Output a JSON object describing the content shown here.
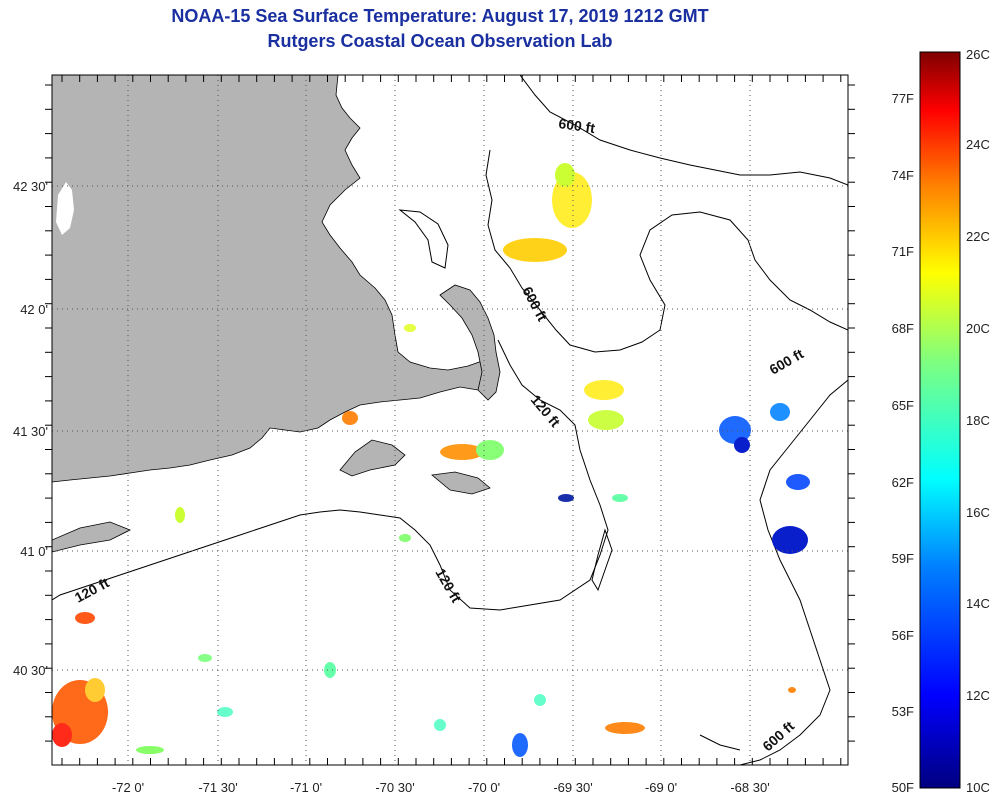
{
  "title": "NOAA-15 Sea Surface Temperature:  August 17, 2019 1212 GMT",
  "subtitle": "Rutgers Coastal Ocean Observation Lab",
  "map": {
    "lat_labels": [
      "42 30'",
      "42 0'",
      "41 30'",
      "41 0'",
      "40 30'"
    ],
    "lon_labels": [
      "-72 0'",
      "-71 30'",
      "-71 0'",
      "-70 30'",
      "-70 0'",
      "-69 30'",
      "-69 0'",
      "-68 30'"
    ],
    "contour_labels": [
      "600 ft",
      "600 ft",
      "600 ft",
      "120 ft",
      "120 ft",
      "120 ft",
      "600 ft"
    ],
    "land_color": "#b4b4b4",
    "grid": "dotted"
  },
  "colorbar": {
    "celsius_labels": [
      "26C",
      "24C",
      "22C",
      "20C",
      "18C",
      "16C",
      "14C",
      "12C",
      "10C"
    ],
    "fahrenheit_labels": [
      "77F",
      "74F",
      "71F",
      "68F",
      "65F",
      "62F",
      "59F",
      "56F",
      "53F",
      "50F"
    ],
    "range_c": [
      10,
      26
    ],
    "colors": [
      "#00007f",
      "#0000ff",
      "#007fff",
      "#00ffff",
      "#7fff7f",
      "#ffff00",
      "#ff7f00",
      "#ff0000",
      "#7f0000"
    ]
  }
}
